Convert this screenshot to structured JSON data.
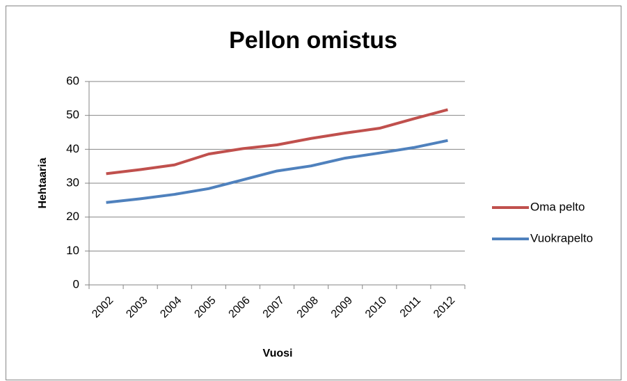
{
  "chart_data": {
    "type": "line",
    "title": "Pellon omistus",
    "x_label": "Vuosi",
    "y_label": "Hehtaaria",
    "categories": [
      "2002",
      "2003",
      "2004",
      "2005",
      "2006",
      "2007",
      "2008",
      "2009",
      "2010",
      "2011",
      "2012"
    ],
    "series": [
      {
        "name": "Oma pelto",
        "color": "#c0504d",
        "values": [
          32.8,
          34,
          35.4,
          38.6,
          40.2,
          41.3,
          43.2,
          44.8,
          46.2,
          49,
          51.7
        ]
      },
      {
        "name": "Vuokrapelto",
        "color": "#4f81bd",
        "values": [
          24.3,
          25.4,
          26.7,
          28.4,
          31,
          33.6,
          35.1,
          37.4,
          38.9,
          40.5,
          42.6
        ]
      }
    ],
    "ylim": [
      0,
      60
    ],
    "yticks": [
      0,
      10,
      20,
      30,
      40,
      50,
      60
    ],
    "grid": true,
    "legend": "right"
  }
}
